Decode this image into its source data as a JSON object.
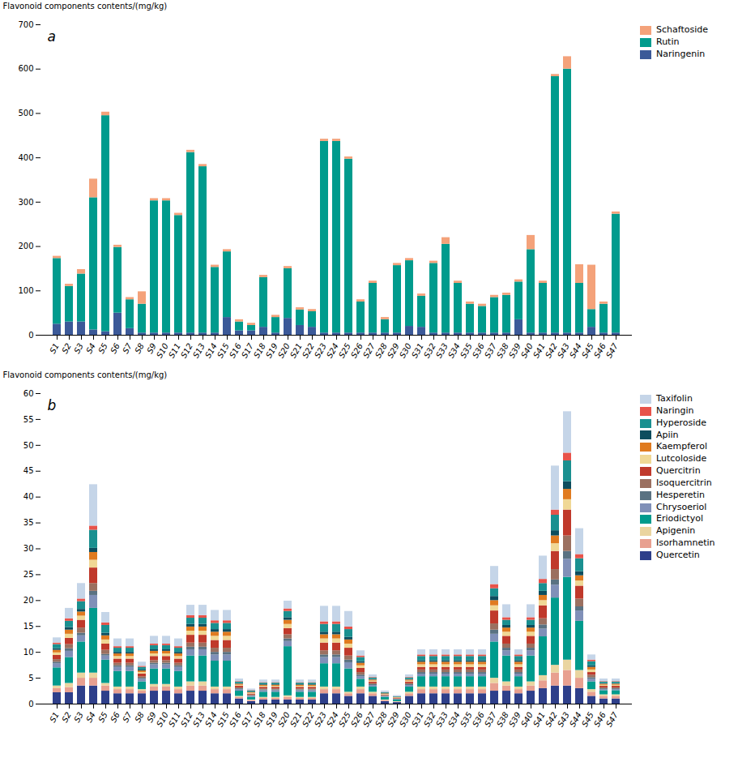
{
  "chart_data": [
    {
      "type": "bar",
      "stacked": true,
      "categories": [
        "S1",
        "S2",
        "S3",
        "S4",
        "S5",
        "S6",
        "S7",
        "S8",
        "S9",
        "S10",
        "S11",
        "S12",
        "S13",
        "S14",
        "S15",
        "S16",
        "S17",
        "S18",
        "S19",
        "S20",
        "S21",
        "S22",
        "S23",
        "S24",
        "S25",
        "S26",
        "S27",
        "S28",
        "S29",
        "S30",
        "S31",
        "S32",
        "S33",
        "S34",
        "S35",
        "S36",
        "S37",
        "S38",
        "S39",
        "S40",
        "S41",
        "S42",
        "S43",
        "S44",
        "S45",
        "S46",
        "S47"
      ],
      "series": [
        {
          "name": "Naringenin",
          "color": "#3b5998",
          "values": [
            25,
            30,
            30,
            12,
            8,
            50,
            15,
            5,
            5,
            5,
            5,
            5,
            5,
            5,
            40,
            10,
            10,
            18,
            5,
            38,
            22,
            18,
            5,
            5,
            5,
            5,
            5,
            5,
            5,
            20,
            18,
            5,
            5,
            5,
            5,
            5,
            5,
            5,
            35,
            5,
            5,
            5,
            5,
            5,
            18,
            5,
            5
          ]
        },
        {
          "name": "Rutin",
          "color": "#009b8d",
          "values": [
            148,
            80,
            108,
            298,
            487,
            148,
            65,
            65,
            298,
            298,
            265,
            407,
            375,
            148,
            148,
            20,
            12,
            112,
            35,
            112,
            35,
            35,
            432,
            432,
            392,
            70,
            112,
            30,
            152,
            148,
            70,
            157,
            200,
            112,
            65,
            60,
            80,
            85,
            85,
            188,
            112,
            578,
            595,
            112,
            40,
            65,
            268
          ]
        },
        {
          "name": "Schaftoside",
          "color": "#f4a27a",
          "values": [
            5,
            5,
            10,
            42,
            8,
            5,
            5,
            28,
            5,
            5,
            5,
            5,
            5,
            5,
            5,
            5,
            5,
            5,
            5,
            5,
            5,
            5,
            5,
            5,
            5,
            5,
            5,
            5,
            5,
            5,
            5,
            5,
            15,
            5,
            5,
            5,
            5,
            5,
            5,
            32,
            5,
            5,
            28,
            42,
            100,
            5,
            5
          ]
        }
      ],
      "ylabel": "Flavonoid components contents/(mg/kg)",
      "ylim": [
        0,
        700
      ],
      "yticks": [
        0,
        100,
        200,
        300,
        400,
        500,
        600,
        700
      ],
      "grid": false,
      "legend": "upper right",
      "annotations": [
        "a"
      ]
    },
    {
      "type": "bar",
      "stacked": true,
      "categories": [
        "S1",
        "S2",
        "S3",
        "S4",
        "S5",
        "S6",
        "S7",
        "S8",
        "S9",
        "S10",
        "S11",
        "S12",
        "S13",
        "S14",
        "S15",
        "S16",
        "S17",
        "S18",
        "S19",
        "S20",
        "S21",
        "S22",
        "S23",
        "S24",
        "S25",
        "S26",
        "S27",
        "S28",
        "S29",
        "S30",
        "S31",
        "S32",
        "S33",
        "S34",
        "S35",
        "S36",
        "S37",
        "S38",
        "S39",
        "S40",
        "S41",
        "S42",
        "S43",
        "S44",
        "S45",
        "S46",
        "S47"
      ],
      "series": [
        {
          "name": "Quercetin",
          "color": "#2e3f8a",
          "values": [
            2.2,
            2.2,
            3.5,
            3.5,
            2.5,
            2.0,
            2.0,
            2.0,
            2.5,
            2.5,
            2.0,
            2.5,
            2.5,
            2.0,
            2.0,
            1.0,
            0.5,
            0.8,
            0.8,
            0.8,
            0.8,
            0.8,
            2.0,
            2.0,
            1.5,
            2.0,
            1.5,
            0.5,
            0.3,
            1.5,
            2.0,
            2.0,
            2.0,
            2.0,
            2.0,
            2.0,
            2.5,
            2.5,
            2.0,
            2.5,
            3.0,
            3.5,
            3.5,
            3.0,
            1.5,
            1.0,
            1.0
          ]
        },
        {
          "name": "Isorhamnetin",
          "color": "#e8a090",
          "values": [
            0.8,
            1.0,
            1.5,
            1.5,
            1.0,
            0.8,
            0.8,
            0.5,
            0.8,
            0.8,
            0.8,
            1.0,
            1.0,
            0.8,
            0.8,
            0.3,
            0.2,
            0.3,
            0.3,
            0.5,
            0.3,
            0.3,
            0.8,
            0.8,
            0.5,
            0.8,
            0.5,
            0.2,
            0.1,
            0.5,
            0.8,
            0.8,
            0.8,
            0.8,
            0.8,
            0.8,
            1.5,
            1.0,
            0.8,
            1.0,
            1.5,
            2.5,
            3.0,
            2.0,
            0.8,
            0.5,
            0.5
          ]
        },
        {
          "name": "Apigenin",
          "color": "#ead5a0",
          "values": [
            0.5,
            0.8,
            1.0,
            1.0,
            0.5,
            0.5,
            0.5,
            0.3,
            0.5,
            0.5,
            0.5,
            0.8,
            0.8,
            0.5,
            0.5,
            0.2,
            0.1,
            0.2,
            0.2,
            0.3,
            0.2,
            0.2,
            0.5,
            0.5,
            0.3,
            0.5,
            0.3,
            0.1,
            0.08,
            0.3,
            0.5,
            0.5,
            0.5,
            0.5,
            0.5,
            0.5,
            1.0,
            0.8,
            0.5,
            0.8,
            1.0,
            1.5,
            2.0,
            1.5,
            0.5,
            0.3,
            0.3
          ]
        },
        {
          "name": "Eriodictyol",
          "color": "#009b8d",
          "values": [
            3.5,
            5.0,
            6.0,
            12.5,
            4.5,
            3.0,
            3.0,
            1.5,
            3.0,
            3.0,
            3.0,
            5.0,
            5.0,
            5.0,
            5.0,
            1.0,
            0.5,
            1.0,
            1.0,
            9.5,
            1.0,
            1.0,
            4.5,
            4.5,
            4.5,
            1.5,
            1.0,
            0.5,
            0.3,
            1.0,
            2.0,
            2.0,
            2.0,
            2.0,
            2.0,
            2.0,
            7.0,
            5.0,
            2.0,
            5.0,
            7.5,
            13.0,
            16.0,
            9.5,
            1.5,
            0.8,
            0.8
          ]
        },
        {
          "name": "Chrysoeriol",
          "color": "#8090b8",
          "values": [
            0.8,
            1.2,
            1.2,
            2.5,
            0.8,
            0.8,
            0.8,
            0.5,
            0.8,
            0.8,
            0.8,
            1.2,
            1.2,
            1.2,
            1.2,
            0.3,
            0.2,
            0.3,
            0.3,
            1.0,
            0.3,
            0.3,
            1.2,
            1.2,
            1.2,
            0.5,
            0.3,
            0.15,
            0.1,
            0.3,
            0.5,
            0.5,
            0.5,
            0.5,
            0.5,
            0.5,
            1.5,
            1.0,
            0.5,
            1.0,
            1.5,
            2.5,
            3.5,
            2.0,
            0.5,
            0.2,
            0.2
          ]
        },
        {
          "name": "Hesperetin",
          "color": "#5a7282",
          "values": [
            0.3,
            0.5,
            0.5,
            0.8,
            0.3,
            0.3,
            0.3,
            0.2,
            0.3,
            0.3,
            0.3,
            0.5,
            0.5,
            0.5,
            0.5,
            0.15,
            0.1,
            0.15,
            0.15,
            0.5,
            0.15,
            0.15,
            0.5,
            0.5,
            0.5,
            0.3,
            0.15,
            0.08,
            0.05,
            0.15,
            0.3,
            0.3,
            0.3,
            0.3,
            0.3,
            0.3,
            0.8,
            0.5,
            0.3,
            0.5,
            0.8,
            1.0,
            1.5,
            0.8,
            0.3,
            0.15,
            0.15
          ]
        },
        {
          "name": "Isoquercitrin",
          "color": "#9b7060",
          "values": [
            0.5,
            0.8,
            1.0,
            1.5,
            0.8,
            0.5,
            0.5,
            0.3,
            0.5,
            0.5,
            0.5,
            0.8,
            0.8,
            0.8,
            0.8,
            0.2,
            0.15,
            0.2,
            0.2,
            0.8,
            0.2,
            0.2,
            0.8,
            0.8,
            0.8,
            0.5,
            0.2,
            0.1,
            0.08,
            0.2,
            0.5,
            0.5,
            0.5,
            0.5,
            0.5,
            0.5,
            1.2,
            0.8,
            0.5,
            0.8,
            1.2,
            2.0,
            3.0,
            1.5,
            0.5,
            0.2,
            0.2
          ]
        },
        {
          "name": "Quercitrin",
          "color": "#c0392b",
          "values": [
            0.8,
            1.2,
            1.5,
            3.0,
            1.2,
            0.8,
            0.8,
            0.5,
            0.8,
            0.8,
            0.8,
            1.5,
            1.5,
            1.5,
            1.5,
            0.3,
            0.2,
            0.3,
            0.3,
            1.2,
            0.3,
            0.3,
            1.5,
            1.5,
            1.5,
            0.8,
            0.3,
            0.15,
            0.1,
            0.3,
            0.5,
            0.5,
            0.5,
            0.5,
            0.5,
            0.5,
            2.5,
            1.5,
            0.5,
            1.5,
            2.5,
            3.5,
            5.0,
            2.5,
            0.5,
            0.3,
            0.3
          ]
        },
        {
          "name": "Lutcoloside",
          "color": "#f0d895",
          "values": [
            0.5,
            0.8,
            0.8,
            1.5,
            0.8,
            0.5,
            0.5,
            0.3,
            0.5,
            0.5,
            0.5,
            0.8,
            0.8,
            0.8,
            0.8,
            0.2,
            0.15,
            0.2,
            0.2,
            0.8,
            0.2,
            0.2,
            0.8,
            0.8,
            0.8,
            0.5,
            0.2,
            0.1,
            0.08,
            0.2,
            0.5,
            0.5,
            0.5,
            0.5,
            0.5,
            0.5,
            1.0,
            0.8,
            0.5,
            0.8,
            1.0,
            1.5,
            2.0,
            1.0,
            0.5,
            0.2,
            0.2
          ]
        },
        {
          "name": "Kaempferol",
          "color": "#e07b20",
          "values": [
            0.5,
            0.8,
            0.8,
            1.5,
            0.8,
            0.5,
            0.5,
            0.3,
            0.5,
            0.5,
            0.5,
            0.8,
            0.8,
            0.8,
            0.8,
            0.2,
            0.15,
            0.2,
            0.2,
            0.8,
            0.2,
            0.2,
            0.8,
            0.8,
            0.8,
            0.5,
            0.2,
            0.1,
            0.08,
            0.2,
            0.5,
            0.5,
            0.5,
            0.5,
            0.5,
            0.5,
            1.0,
            0.8,
            0.5,
            0.8,
            1.0,
            1.5,
            2.0,
            1.0,
            0.5,
            0.2,
            0.2
          ]
        },
        {
          "name": "Apiin",
          "color": "#0d4d5e",
          "values": [
            0.3,
            0.5,
            0.5,
            0.8,
            0.5,
            0.3,
            0.3,
            0.2,
            0.3,
            0.3,
            0.3,
            0.5,
            0.5,
            0.5,
            0.5,
            0.1,
            0.08,
            0.1,
            0.1,
            0.5,
            0.1,
            0.1,
            0.5,
            0.5,
            0.5,
            0.3,
            0.1,
            0.05,
            0.04,
            0.1,
            0.3,
            0.3,
            0.3,
            0.3,
            0.3,
            0.3,
            0.8,
            0.5,
            0.3,
            0.5,
            0.8,
            1.0,
            1.5,
            0.8,
            0.3,
            0.1,
            0.1
          ]
        },
        {
          "name": "Hyperoside",
          "color": "#1a9090",
          "values": [
            0.8,
            1.2,
            1.5,
            3.5,
            1.5,
            0.8,
            0.8,
            0.5,
            0.8,
            0.8,
            0.8,
            1.2,
            1.2,
            1.2,
            1.2,
            0.3,
            0.2,
            0.3,
            0.3,
            1.2,
            0.3,
            0.3,
            1.5,
            1.5,
            1.5,
            0.8,
            0.3,
            0.15,
            0.1,
            0.3,
            0.8,
            0.8,
            0.8,
            0.8,
            0.8,
            0.8,
            1.5,
            1.0,
            0.8,
            1.0,
            1.5,
            3.0,
            4.0,
            2.5,
            0.8,
            0.3,
            0.3
          ]
        },
        {
          "name": "Naringin",
          "color": "#e8534a",
          "values": [
            0.3,
            0.5,
            0.5,
            0.8,
            0.5,
            0.3,
            0.3,
            0.2,
            0.3,
            0.3,
            0.3,
            0.5,
            0.5,
            0.5,
            0.5,
            0.1,
            0.08,
            0.1,
            0.1,
            0.5,
            0.1,
            0.1,
            0.5,
            0.5,
            0.5,
            0.3,
            0.1,
            0.05,
            0.04,
            0.1,
            0.3,
            0.3,
            0.3,
            0.3,
            0.3,
            0.3,
            0.8,
            0.5,
            0.3,
            0.5,
            0.8,
            1.0,
            1.5,
            0.8,
            0.3,
            0.1,
            0.1
          ]
        },
        {
          "name": "Taxifolin",
          "color": "#c5d5e8",
          "values": [
            1.0,
            2.0,
            3.0,
            8.0,
            2.0,
            1.5,
            1.5,
            0.8,
            1.5,
            1.5,
            1.5,
            2.0,
            2.0,
            2.0,
            2.0,
            0.5,
            0.3,
            0.5,
            0.5,
            1.5,
            0.5,
            0.5,
            3.0,
            3.0,
            3.0,
            1.0,
            0.5,
            0.3,
            0.2,
            0.5,
            1.0,
            1.0,
            1.0,
            1.0,
            1.0,
            1.0,
            3.5,
            2.5,
            1.0,
            2.5,
            4.5,
            8.5,
            8.0,
            5.0,
            1.0,
            0.5,
            0.5
          ]
        }
      ],
      "ylabel": "Flavonoid components contents/(mg/kg)",
      "ylim": [
        0,
        60
      ],
      "yticks": [
        0,
        5,
        10,
        15,
        20,
        25,
        30,
        35,
        40,
        45,
        50,
        55,
        60
      ],
      "grid": false,
      "legend": "upper right",
      "annotations": [
        "b"
      ]
    }
  ]
}
